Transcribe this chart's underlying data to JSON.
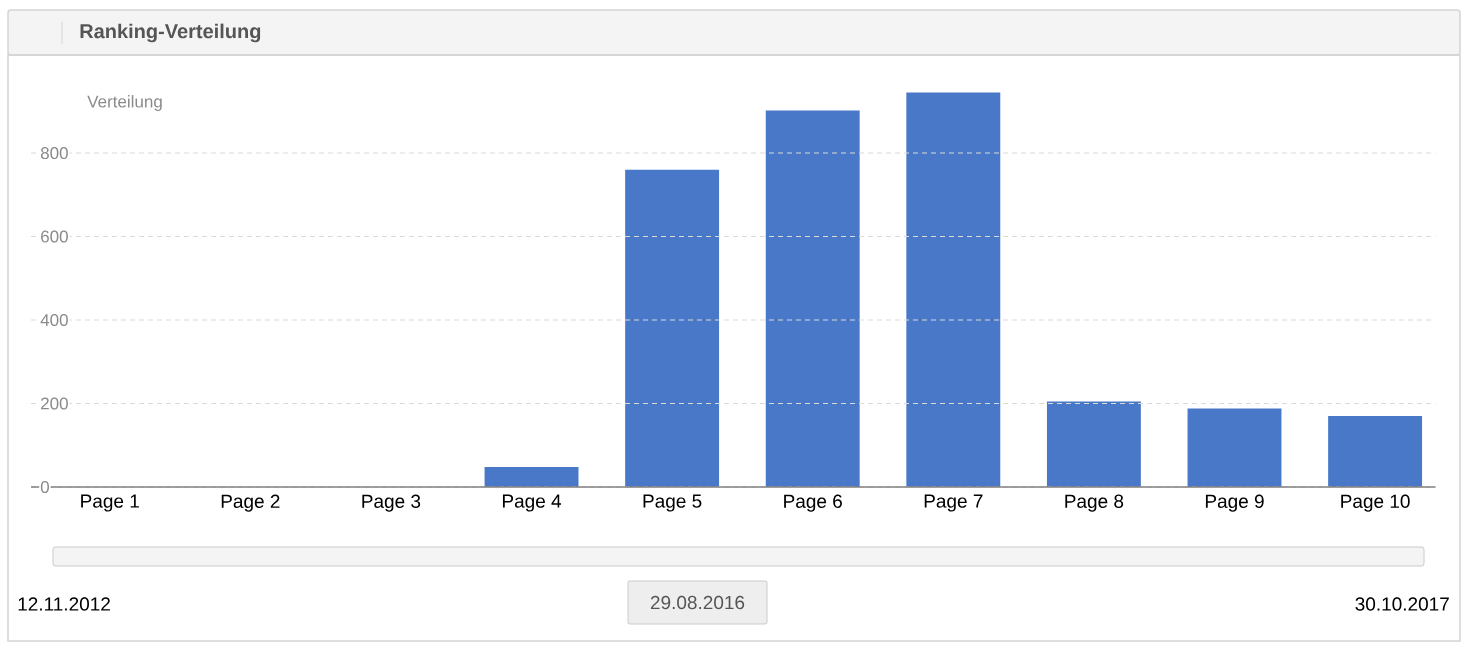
{
  "chart_data": {
    "type": "bar",
    "title": "Ranking-Verteilung",
    "categories": [
      "Page 1",
      "Page 2",
      "Page 3",
      "Page 4",
      "Page 5",
      "Page 6",
      "Page 7",
      "Page 8",
      "Page 9",
      "Page 10"
    ],
    "values": [
      0,
      0,
      0,
      48,
      760,
      902,
      945,
      205,
      188,
      170
    ],
    "color": "#4878c7",
    "ylim": [
      0,
      1035
    ],
    "yticks": [
      0,
      200,
      400,
      600,
      800
    ],
    "grid": "y",
    "annotations": [
      "Verteilung",
      "12.11.2012",
      "29.08.2016",
      "30.10.2017"
    ]
  }
}
